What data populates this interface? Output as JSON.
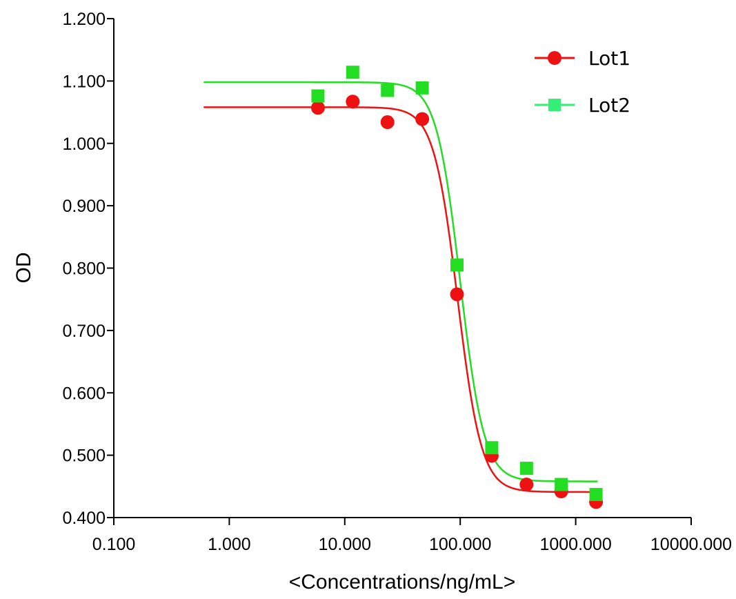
{
  "chart_data": {
    "type": "scatter",
    "title": "",
    "xlabel": "<Concentrations/ng/mL>",
    "ylabel": "OD",
    "x_scale": "log",
    "xlim": [
      0.1,
      10000
    ],
    "ylim": [
      0.4,
      1.2
    ],
    "x_ticks": [
      {
        "value": 0.1,
        "label": "0.100"
      },
      {
        "value": 1,
        "label": "1.000"
      },
      {
        "value": 10,
        "label": "10.000"
      },
      {
        "value": 100,
        "label": "100.000"
      },
      {
        "value": 1000,
        "label": "1000.000"
      },
      {
        "value": 10000,
        "label": "10000.000"
      }
    ],
    "y_ticks": [
      {
        "value": 0.4,
        "label": "0.400"
      },
      {
        "value": 0.5,
        "label": "0.500"
      },
      {
        "value": 0.6,
        "label": "0.600"
      },
      {
        "value": 0.7,
        "label": "0.700"
      },
      {
        "value": 0.8,
        "label": "0.800"
      },
      {
        "value": 0.9,
        "label": "0.900"
      },
      {
        "value": 1.0,
        "label": "1.000"
      },
      {
        "value": 1.1,
        "label": "1.100"
      },
      {
        "value": 1.2,
        "label": "1.200"
      }
    ],
    "grid": false,
    "legend_position": "top-right",
    "series": [
      {
        "name": "Lot1",
        "color": "#ee1111",
        "marker": "circle",
        "x": [
          5.86,
          11.72,
          23.44,
          46.88,
          93.75,
          187.5,
          375,
          750,
          1500
        ],
        "y": [
          1.057,
          1.067,
          1.034,
          1.039,
          0.758,
          0.499,
          0.453,
          0.442,
          0.425
        ],
        "fit": {
          "model": "4PL",
          "top": 1.058,
          "bottom": 0.441,
          "ec50": 95,
          "hill": 4.2,
          "x_range": [
            0.6,
            1550
          ]
        }
      },
      {
        "name": "Lot2",
        "color": "#22dd22",
        "legend_color": "#33ee77",
        "marker": "square",
        "x": [
          5.86,
          11.72,
          23.44,
          46.88,
          93.75,
          187.5,
          375,
          750,
          1500
        ],
        "y": [
          1.076,
          1.114,
          1.085,
          1.089,
          0.805,
          0.512,
          0.479,
          0.453,
          0.437
        ],
        "fit": {
          "model": "4PL",
          "top": 1.098,
          "bottom": 0.458,
          "ec50": 100,
          "hill": 4.2,
          "x_range": [
            0.6,
            1550
          ]
        }
      }
    ]
  }
}
